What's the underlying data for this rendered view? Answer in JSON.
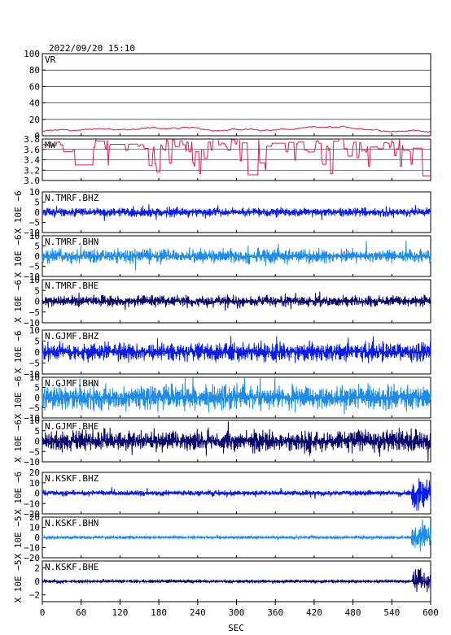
{
  "header": {
    "timestamp": "2022/09/20 15:10"
  },
  "axis": {
    "xlabel": "SEC",
    "xticks": [
      "0",
      "60",
      "120",
      "180",
      "240",
      "300",
      "360",
      "420",
      "480",
      "540",
      "600"
    ],
    "xlim": [
      0,
      600
    ]
  },
  "colors": {
    "vr": "#e8174a",
    "mw": "#e8174a",
    "bhz": "#0a1ee8",
    "bhn": "#1e8ce8",
    "bhe": "#0a0a6e"
  },
  "chart_data": [
    {
      "type": "line",
      "label": "VR",
      "ylim": [
        0,
        100
      ],
      "yticks": [
        "100",
        "80",
        "60",
        "40",
        "20",
        "0"
      ],
      "grid": true,
      "approx_range": [
        3,
        16
      ]
    },
    {
      "type": "line",
      "label": "MW",
      "ylim": [
        3.0,
        3.8
      ],
      "yticks": [
        "3.8",
        "3.6",
        "3.4",
        "3.2",
        "3.0"
      ],
      "grid": true,
      "approx_range": [
        3.0,
        3.8
      ]
    },
    {
      "type": "line",
      "label": "N.TMRF.BHZ",
      "ylim": [
        -10,
        10
      ],
      "yticks": [
        "10",
        "5",
        "0",
        "−5",
        "−10"
      ],
      "ylabel": "X 10E −6",
      "amplitude": 2.5
    },
    {
      "type": "line",
      "label": "N.TMRF.BHN",
      "ylim": [
        -10,
        10
      ],
      "yticks": [
        "10",
        "5",
        "0",
        "−5",
        "−10"
      ],
      "ylabel": "X 10E −6",
      "amplitude": 4
    },
    {
      "type": "line",
      "label": "N.TMRF.BHE",
      "ylim": [
        -10,
        10
      ],
      "yticks": [
        "10",
        "5",
        "0",
        "−5",
        "−10"
      ],
      "ylabel": "X 10E −6",
      "amplitude": 3
    },
    {
      "type": "line",
      "label": "N.GJMF.BHZ",
      "ylim": [
        -10,
        10
      ],
      "yticks": [
        "10",
        "5",
        "0",
        "−5",
        "−10"
      ],
      "ylabel": "X 10E −6",
      "amplitude": 5
    },
    {
      "type": "line",
      "label": "N.GJMF.BHN",
      "ylim": [
        -10,
        10
      ],
      "yticks": [
        "10",
        "5",
        "0",
        "−5",
        "−10"
      ],
      "ylabel": "X 10E −6",
      "amplitude": 7
    },
    {
      "type": "line",
      "label": "N.GJMF.BHE",
      "ylim": [
        -10,
        10
      ],
      "yticks": [
        "10",
        "5",
        "0",
        "−5",
        "−10"
      ],
      "ylabel": "X 10E −6",
      "amplitude": 6
    },
    {
      "type": "line",
      "label": "N.KSKF.BHZ",
      "ylim": [
        -20,
        20
      ],
      "yticks": [
        "20",
        "10",
        "0",
        "−10",
        "−20"
      ],
      "ylabel": "X 10E −6",
      "amplitude": 3,
      "burst_end": 20
    },
    {
      "type": "line",
      "label": "N.KSKF.BHN",
      "ylim": [
        -20,
        20
      ],
      "yticks": [
        "20",
        "10",
        "0",
        "−10",
        "−20"
      ],
      "ylabel": "X 10E −5",
      "amplitude": 1.5,
      "burst_end": 18
    },
    {
      "type": "line",
      "label": "N.KSKF.BHE",
      "ylim": [
        -3,
        3
      ],
      "yticks": [
        "2",
        "0",
        "−2"
      ],
      "ylabel": "X 10E −5",
      "amplitude": 0.25,
      "burst_end": 2.5
    }
  ]
}
